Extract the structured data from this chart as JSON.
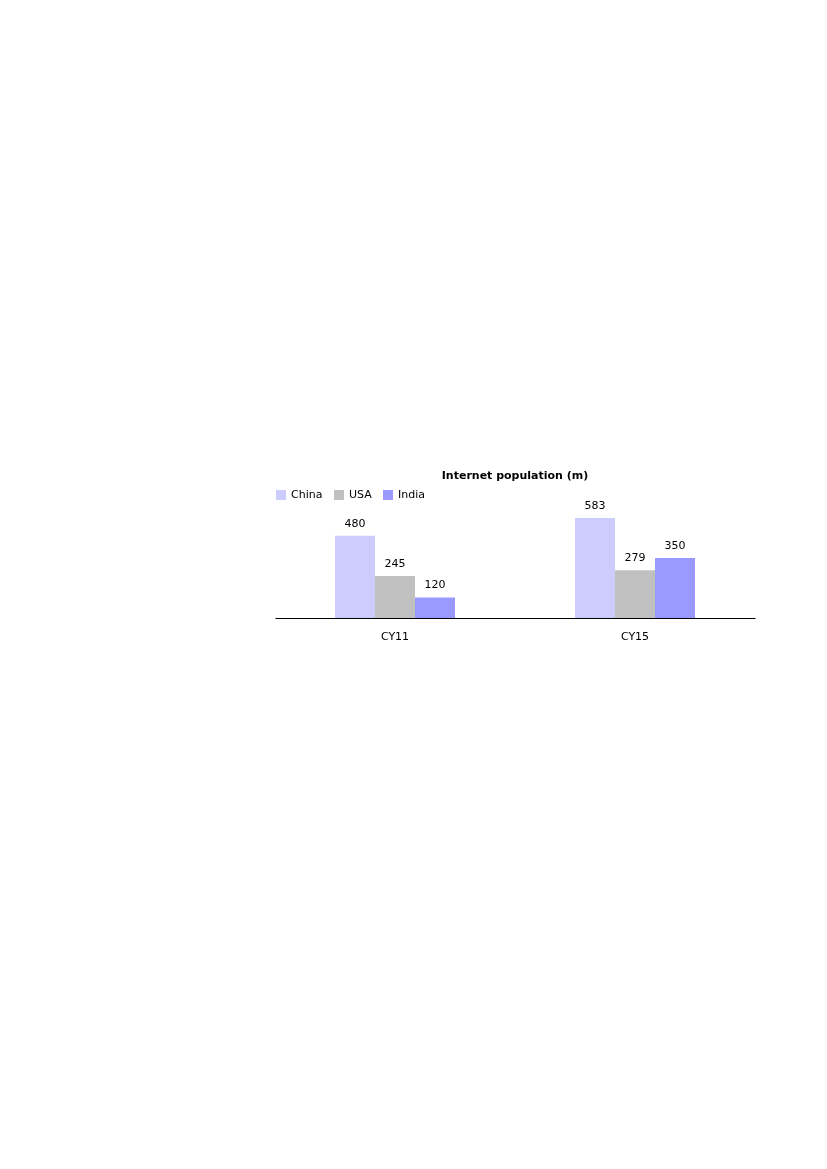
{
  "chart_data": {
    "type": "bar",
    "title": "Internet population  (m)",
    "categories": [
      "CY11",
      "CY15"
    ],
    "series": [
      {
        "name": "China",
        "color": "#ccccff",
        "values": [
          480,
          583
        ]
      },
      {
        "name": "USA",
        "color": "#c0c0c0",
        "values": [
          245,
          279
        ]
      },
      {
        "name": "India",
        "color": "#9999ff",
        "values": [
          120,
          350
        ]
      }
    ],
    "data_labels": true,
    "legend": "top",
    "grid": false
  }
}
